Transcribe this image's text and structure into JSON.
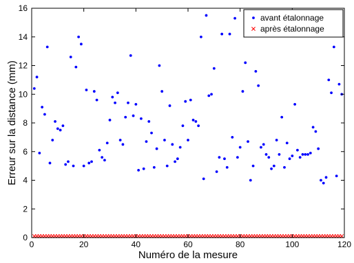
{
  "chart_data": {
    "type": "scatter",
    "title": "",
    "xlabel": "Numéro de la mesure",
    "ylabel": "Erreur sur la distance (mm)",
    "xlim": [
      0,
      120
    ],
    "ylim": [
      0,
      16
    ],
    "xticks": [
      "0",
      "20",
      "40",
      "60",
      "80",
      "100",
      "120"
    ],
    "yticks": [
      "0",
      "2",
      "4",
      "6",
      "8",
      "10",
      "12",
      "14",
      "16"
    ],
    "grid": false,
    "legend_position": "top-right",
    "series": [
      {
        "name": "avant étalonnage",
        "marker": "dot",
        "color": "#0000ff",
        "x": [
          1,
          2,
          3,
          4,
          5,
          6,
          7,
          8,
          9,
          10,
          11,
          12,
          13,
          14,
          15,
          16,
          17,
          18,
          19,
          20,
          21,
          22,
          23,
          24,
          25,
          26,
          27,
          28,
          29,
          30,
          31,
          32,
          33,
          34,
          35,
          36,
          37,
          38,
          39,
          40,
          41,
          42,
          43,
          44,
          45,
          46,
          47,
          48,
          49,
          50,
          51,
          52,
          53,
          54,
          55,
          56,
          57,
          58,
          59,
          60,
          61,
          62,
          63,
          64,
          65,
          66,
          67,
          68,
          69,
          70,
          71,
          72,
          73,
          74,
          75,
          76,
          77,
          78,
          79,
          80,
          81,
          82,
          83,
          84,
          85,
          86,
          87,
          88,
          89,
          90,
          91,
          92,
          93,
          94,
          95,
          96,
          97,
          98,
          99,
          100,
          101,
          102,
          103,
          104,
          105,
          106,
          107,
          108,
          109,
          110,
          111,
          112,
          113,
          114,
          115,
          116,
          117,
          118,
          119
        ],
        "y": [
          10.4,
          11.2,
          5.9,
          9.1,
          8.6,
          13.3,
          5.2,
          6.8,
          8.1,
          7.6,
          7.5,
          7.8,
          5.1,
          5.3,
          12.6,
          5.0,
          11.9,
          14.0,
          13.5,
          5.0,
          10.3,
          5.2,
          5.3,
          10.2,
          9.6,
          6.1,
          5.6,
          5.4,
          6.6,
          8.2,
          9.8,
          9.4,
          10.1,
          6.8,
          6.5,
          8.4,
          9.4,
          12.7,
          8.5,
          9.3,
          4.7,
          8.3,
          4.8,
          6.7,
          8.1,
          7.3,
          4.9,
          6.2,
          12.0,
          10.2,
          6.8,
          5.0,
          9.2,
          6.5,
          5.3,
          5.5,
          6.3,
          7.8,
          9.5,
          6.8,
          9.6,
          8.2,
          8.1,
          7.8,
          14.0,
          4.1,
          15.5,
          9.9,
          10.0,
          11.8,
          4.6,
          5.6,
          14.2,
          5.5,
          4.9,
          14.2,
          7.0,
          15.3,
          5.6,
          6.3,
          10.2,
          12.2,
          6.7,
          4.0,
          5.0,
          11.6,
          10.6,
          6.3,
          6.5,
          5.8,
          5.6,
          4.8,
          5.0,
          6.8,
          5.8,
          8.4,
          4.9,
          6.6,
          5.5,
          5.7,
          9.3,
          6.1,
          5.6,
          5.8,
          5.8,
          5.8,
          5.9,
          7.7,
          7.4,
          6.2,
          4.0,
          3.8,
          4.2,
          11.0,
          10.1,
          13.3,
          4.3,
          10.7,
          10.0
        ]
      },
      {
        "name": "après étalonnage",
        "marker": "x",
        "color": "#ff0000",
        "x": [
          1,
          2,
          3,
          4,
          5,
          6,
          7,
          8,
          9,
          10,
          11,
          12,
          13,
          14,
          15,
          16,
          17,
          18,
          19,
          20,
          21,
          22,
          23,
          24,
          25,
          26,
          27,
          28,
          29,
          30,
          31,
          32,
          33,
          34,
          35,
          36,
          37,
          38,
          39,
          40,
          41,
          42,
          43,
          44,
          45,
          46,
          47,
          48,
          49,
          50,
          51,
          52,
          53,
          54,
          55,
          56,
          57,
          58,
          59,
          60,
          61,
          62,
          63,
          64,
          65,
          66,
          67,
          68,
          69,
          70,
          71,
          72,
          73,
          74,
          75,
          76,
          77,
          78,
          79,
          80,
          81,
          82,
          83,
          84,
          85,
          86,
          87,
          88,
          89,
          90,
          91,
          92,
          93,
          94,
          95,
          96,
          97,
          98,
          99,
          100,
          101,
          102,
          103,
          104,
          105,
          106,
          107,
          108,
          109,
          110,
          111,
          112,
          113,
          114,
          115,
          116,
          117,
          118,
          119
        ],
        "y": [
          0.1,
          0.1,
          0.1,
          0.1,
          0.1,
          0.1,
          0.1,
          0.1,
          0.1,
          0.1,
          0.1,
          0.1,
          0.1,
          0.1,
          0.1,
          0.1,
          0.1,
          0.1,
          0.1,
          0.1,
          0.1,
          0.1,
          0.1,
          0.1,
          0.1,
          0.1,
          0.1,
          0.1,
          0.1,
          0.1,
          0.1,
          0.1,
          0.1,
          0.1,
          0.1,
          0.1,
          0.1,
          0.1,
          0.1,
          0.1,
          0.1,
          0.1,
          0.1,
          0.1,
          0.1,
          0.1,
          0.1,
          0.1,
          0.1,
          0.1,
          0.1,
          0.1,
          0.1,
          0.1,
          0.1,
          0.1,
          0.1,
          0.1,
          0.1,
          0.1,
          0.1,
          0.1,
          0.1,
          0.1,
          0.1,
          0.1,
          0.1,
          0.1,
          0.1,
          0.1,
          0.1,
          0.1,
          0.1,
          0.1,
          0.1,
          0.1,
          0.1,
          0.1,
          0.1,
          0.1,
          0.1,
          0.1,
          0.1,
          0.1,
          0.1,
          0.1,
          0.1,
          0.1,
          0.1,
          0.1,
          0.1,
          0.1,
          0.1,
          0.1,
          0.1,
          0.1,
          0.1,
          0.1,
          0.1,
          0.1,
          0.1,
          0.1,
          0.1,
          0.1,
          0.1,
          0.1,
          0.1,
          0.1,
          0.1,
          0.1,
          0.1,
          0.1,
          0.1,
          0.1,
          0.1,
          0.1,
          0.1,
          0.1,
          0.1
        ]
      }
    ]
  }
}
